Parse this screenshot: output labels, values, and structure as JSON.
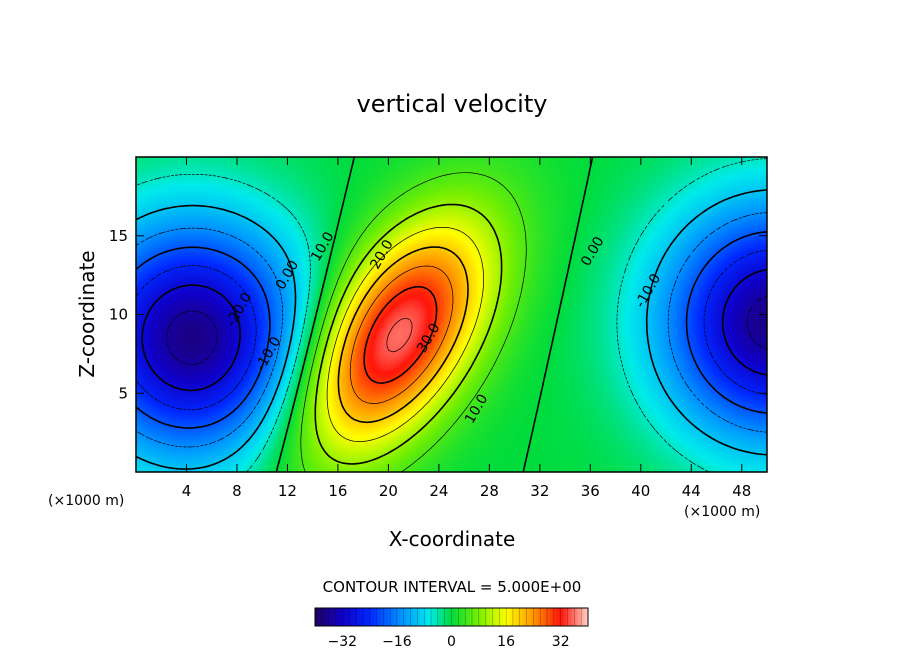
{
  "chart_data": {
    "type": "contour",
    "title": "vertical velocity",
    "xlabel": "X-coordinate",
    "ylabel": "Z-coordinate",
    "x_unit_left": "(×1000 m)",
    "x_unit_right": "(×1000 m)",
    "xlim": [
      0,
      50
    ],
    "ylim": [
      0,
      20
    ],
    "x_ticks": [
      4,
      8,
      12,
      16,
      20,
      24,
      28,
      32,
      36,
      40,
      44,
      48
    ],
    "y_ticks": [
      5,
      10,
      15
    ],
    "contour_interval_text": "CONTOUR INTERVAL = 5.000E+00",
    "contour_interval": 5.0,
    "field_range": [
      -38,
      38
    ],
    "colorbar": {
      "range": [
        -40,
        40
      ],
      "ticks": [
        -32,
        -16,
        0,
        16,
        32
      ],
      "tick_labels": [
        "−32",
        "−16",
        "0",
        "16",
        "32"
      ]
    },
    "cells": [
      {
        "name": "updraft",
        "cx": 20.5,
        "cz": 8.5,
        "amplitude": 37
      },
      {
        "name": "downdraft-left",
        "cx": 4.5,
        "cz": 8.5,
        "amplitude": -37
      },
      {
        "name": "downdraft-right",
        "cx": 50.5,
        "cz": 9.5,
        "amplitude": -37
      }
    ],
    "contour_labels": [
      {
        "text": "0.00",
        "x": 12.0,
        "z": 12.5
      },
      {
        "text": "10.0",
        "x": 14.8,
        "z": 14.3
      },
      {
        "text": "20.0",
        "x": 19.5,
        "z": 13.8
      },
      {
        "text": "30.0",
        "x": 23.2,
        "z": 8.5
      },
      {
        "text": "10.0",
        "x": 27.0,
        "z": 4.0
      },
      {
        "text": "0.00",
        "x": 36.2,
        "z": 14.0
      },
      {
        "text": "-10.0",
        "x": 40.6,
        "z": 11.5
      },
      {
        "text": "-20.0",
        "x": 8.2,
        "z": 10.3
      },
      {
        "text": "-10.0",
        "x": 10.5,
        "z": 7.5
      }
    ]
  }
}
